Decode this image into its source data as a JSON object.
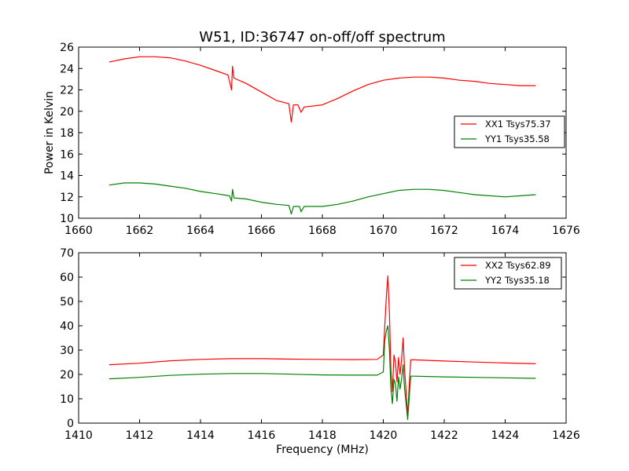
{
  "figure_title": "W51, ID:36747 on-off/off spectrum",
  "chart_data": [
    {
      "type": "line",
      "title": "W51, ID:36747 on-off/off spectrum",
      "xlabel": "",
      "ylabel": "Power in Kelvin",
      "xlim": [
        1660,
        1676
      ],
      "ylim": [
        10,
        26
      ],
      "x_ticks": [
        1660,
        1662,
        1664,
        1666,
        1668,
        1670,
        1672,
        1674,
        1676
      ],
      "y_ticks": [
        10,
        12,
        14,
        16,
        18,
        20,
        22,
        24,
        26
      ],
      "legend_position": "right",
      "grid": false,
      "series": [
        {
          "name": "XX1 Tsys75.37",
          "color": "#ff0000",
          "points": [
            [
              1661.0,
              24.6
            ],
            [
              1661.5,
              24.9
            ],
            [
              1662.0,
              25.1
            ],
            [
              1662.5,
              25.1
            ],
            [
              1663.0,
              25.0
            ],
            [
              1663.5,
              24.7
            ],
            [
              1664.0,
              24.3
            ],
            [
              1664.5,
              23.8
            ],
            [
              1664.9,
              23.4
            ],
            [
              1665.02,
              22.0
            ],
            [
              1665.05,
              24.2
            ],
            [
              1665.1,
              23.1
            ],
            [
              1665.5,
              22.6
            ],
            [
              1666.0,
              21.8
            ],
            [
              1666.5,
              21.0
            ],
            [
              1666.9,
              20.7
            ],
            [
              1666.98,
              19.0
            ],
            [
              1667.05,
              20.6
            ],
            [
              1667.2,
              20.6
            ],
            [
              1667.3,
              19.9
            ],
            [
              1667.4,
              20.4
            ],
            [
              1668.0,
              20.6
            ],
            [
              1668.5,
              21.2
            ],
            [
              1669.0,
              21.9
            ],
            [
              1669.5,
              22.5
            ],
            [
              1670.0,
              22.9
            ],
            [
              1670.5,
              23.1
            ],
            [
              1671.0,
              23.2
            ],
            [
              1671.5,
              23.2
            ],
            [
              1672.0,
              23.1
            ],
            [
              1672.5,
              22.9
            ],
            [
              1673.0,
              22.8
            ],
            [
              1673.5,
              22.6
            ],
            [
              1674.0,
              22.5
            ],
            [
              1674.5,
              22.4
            ],
            [
              1675.0,
              22.4
            ]
          ]
        },
        {
          "name": "YY1 Tsys35.58",
          "color": "#008000",
          "points": [
            [
              1661.0,
              13.1
            ],
            [
              1661.5,
              13.3
            ],
            [
              1662.0,
              13.3
            ],
            [
              1662.5,
              13.2
            ],
            [
              1663.0,
              13.0
            ],
            [
              1663.5,
              12.8
            ],
            [
              1664.0,
              12.5
            ],
            [
              1664.5,
              12.3
            ],
            [
              1664.95,
              12.1
            ],
            [
              1665.02,
              11.6
            ],
            [
              1665.05,
              12.7
            ],
            [
              1665.1,
              11.9
            ],
            [
              1665.5,
              11.8
            ],
            [
              1666.0,
              11.5
            ],
            [
              1666.5,
              11.3
            ],
            [
              1666.9,
              11.2
            ],
            [
              1666.98,
              10.4
            ],
            [
              1667.05,
              11.1
            ],
            [
              1667.25,
              11.1
            ],
            [
              1667.3,
              10.6
            ],
            [
              1667.4,
              11.1
            ],
            [
              1668.0,
              11.1
            ],
            [
              1668.5,
              11.3
            ],
            [
              1669.0,
              11.6
            ],
            [
              1669.5,
              12.0
            ],
            [
              1670.0,
              12.3
            ],
            [
              1670.5,
              12.6
            ],
            [
              1671.0,
              12.7
            ],
            [
              1671.5,
              12.7
            ],
            [
              1672.0,
              12.6
            ],
            [
              1672.5,
              12.4
            ],
            [
              1673.0,
              12.2
            ],
            [
              1673.5,
              12.1
            ],
            [
              1674.0,
              12.0
            ],
            [
              1674.5,
              12.1
            ],
            [
              1675.0,
              12.2
            ]
          ]
        }
      ]
    },
    {
      "type": "line",
      "title": "",
      "xlabel": "Frequency (MHz)",
      "ylabel": "",
      "xlim": [
        1410,
        1426
      ],
      "ylim": [
        0,
        70
      ],
      "x_ticks": [
        1410,
        1412,
        1414,
        1416,
        1418,
        1420,
        1422,
        1424,
        1426
      ],
      "y_ticks": [
        0,
        10,
        20,
        30,
        40,
        50,
        60,
        70
      ],
      "legend_position": "upper right",
      "grid": false,
      "series": [
        {
          "name": "XX2 Tsys62.89",
          "color": "#ff0000",
          "points": [
            [
              1411.0,
              24.0
            ],
            [
              1412.0,
              24.6
            ],
            [
              1413.0,
              25.6
            ],
            [
              1414.0,
              26.2
            ],
            [
              1415.0,
              26.5
            ],
            [
              1416.0,
              26.5
            ],
            [
              1417.0,
              26.3
            ],
            [
              1418.0,
              26.2
            ],
            [
              1419.0,
              26.1
            ],
            [
              1419.8,
              26.2
            ],
            [
              1420.0,
              28.0
            ],
            [
              1420.05,
              40.0
            ],
            [
              1420.1,
              52.0
            ],
            [
              1420.15,
              60.5
            ],
            [
              1420.2,
              45.0
            ],
            [
              1420.25,
              22.0
            ],
            [
              1420.3,
              13.0
            ],
            [
              1420.35,
              28.0
            ],
            [
              1420.4,
              25.0
            ],
            [
              1420.45,
              17.0
            ],
            [
              1420.5,
              27.0
            ],
            [
              1420.55,
              20.0
            ],
            [
              1420.6,
              26.0
            ],
            [
              1420.65,
              35.0
            ],
            [
              1420.7,
              22.0
            ],
            [
              1420.8,
              3.0
            ],
            [
              1420.85,
              15.0
            ],
            [
              1420.9,
              26.0
            ],
            [
              1421.0,
              26.0
            ],
            [
              1422.0,
              25.5
            ],
            [
              1423.0,
              25.1
            ],
            [
              1424.0,
              24.7
            ],
            [
              1425.0,
              24.4
            ]
          ]
        },
        {
          "name": "YY2 Tsys35.18",
          "color": "#008000",
          "points": [
            [
              1411.0,
              18.2
            ],
            [
              1412.0,
              18.8
            ],
            [
              1413.0,
              19.6
            ],
            [
              1414.0,
              20.1
            ],
            [
              1415.0,
              20.4
            ],
            [
              1416.0,
              20.4
            ],
            [
              1417.0,
              20.1
            ],
            [
              1418.0,
              19.8
            ],
            [
              1419.0,
              19.7
            ],
            [
              1419.8,
              19.7
            ],
            [
              1420.0,
              21.0
            ],
            [
              1420.05,
              34.0
            ],
            [
              1420.1,
              38.0
            ],
            [
              1420.15,
              40.0
            ],
            [
              1420.2,
              30.0
            ],
            [
              1420.25,
              14.0
            ],
            [
              1420.3,
              8.0
            ],
            [
              1420.35,
              18.0
            ],
            [
              1420.4,
              16.0
            ],
            [
              1420.45,
              9.0
            ],
            [
              1420.5,
              19.0
            ],
            [
              1420.55,
              14.0
            ],
            [
              1420.6,
              18.0
            ],
            [
              1420.65,
              24.0
            ],
            [
              1420.7,
              14.0
            ],
            [
              1420.8,
              1.5
            ],
            [
              1420.85,
              10.0
            ],
            [
              1420.9,
              19.3
            ],
            [
              1421.0,
              19.3
            ],
            [
              1422.0,
              19.0
            ],
            [
              1423.0,
              18.8
            ],
            [
              1424.0,
              18.6
            ],
            [
              1425.0,
              18.4
            ]
          ]
        }
      ]
    }
  ]
}
